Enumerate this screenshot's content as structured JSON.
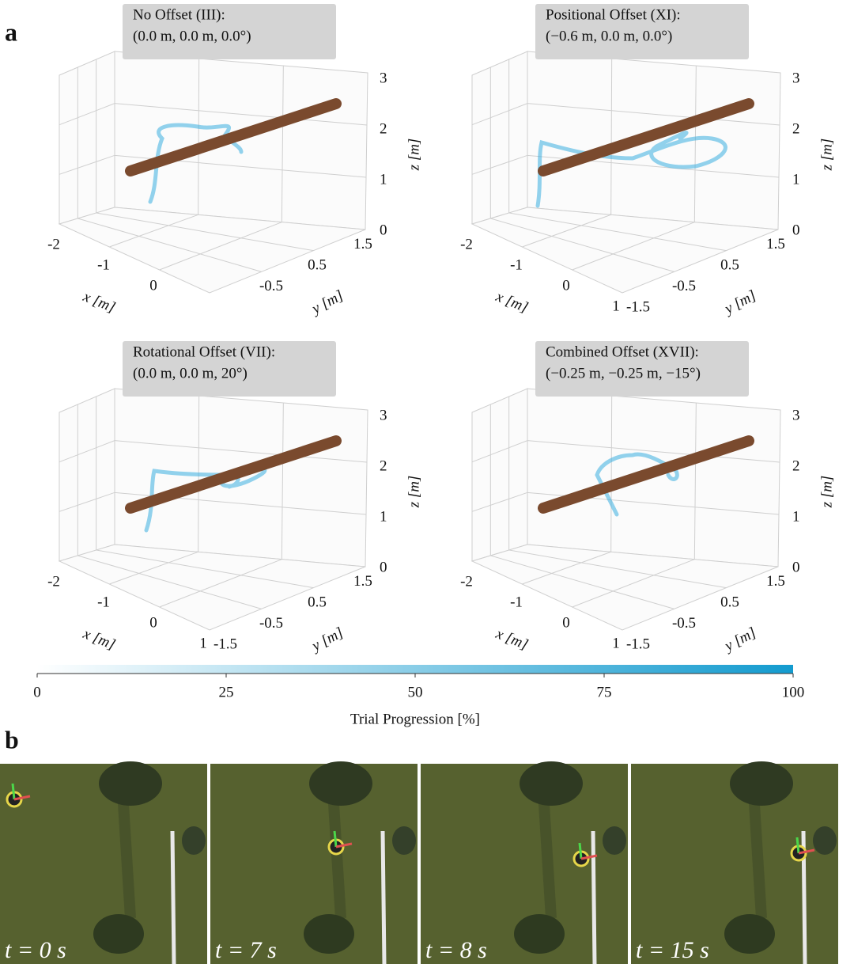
{
  "panel_a": {
    "label": "a",
    "plots": [
      {
        "title_line1": "No Offset (III):",
        "title_line2": "(0.0 m, 0.0 m, 0.0°)",
        "x_ticks": [
          "-2",
          "-1",
          "0"
        ],
        "y_ticks": [
          "-0.5",
          "0.5",
          "1.5"
        ],
        "z_ticks": [
          "0",
          "1",
          "2",
          "3"
        ],
        "x_label": "x [m]",
        "y_label": "y [m]",
        "z_label": "z [m]"
      },
      {
        "title_line1": "Positional Offset (XI):",
        "title_line2": "(−0.6 m, 0.0 m, 0.0°)",
        "x_ticks": [
          "-2",
          "-1",
          "0",
          "1"
        ],
        "y_ticks": [
          "-1.5",
          "-0.5",
          "0.5",
          "1.5"
        ],
        "z_ticks": [
          "0",
          "1",
          "2",
          "3"
        ],
        "x_label": "x [m]",
        "y_label": "y [m]",
        "z_label": "z [m]"
      },
      {
        "title_line1": "Rotational Offset (VII):",
        "title_line2": "(0.0 m, 0.0 m, 20°)",
        "x_ticks": [
          "-2",
          "-1",
          "0",
          "1"
        ],
        "y_ticks": [
          "-1.5",
          "-0.5",
          "0.5",
          "1.5"
        ],
        "z_ticks": [
          "0",
          "1",
          "2",
          "3"
        ],
        "x_label": "x [m]",
        "y_label": "y [m]",
        "z_label": "z [m]"
      },
      {
        "title_line1": "Combined Offset (XVII):",
        "title_line2": "(−0.25 m, −0.25 m, −15°)",
        "x_ticks": [
          "-2",
          "-1",
          "0",
          "1"
        ],
        "y_ticks": [
          "-1.5",
          "-0.5",
          "0.5",
          "1.5"
        ],
        "z_ticks": [
          "0",
          "1",
          "2",
          "3"
        ],
        "x_label": "x [m]",
        "y_label": "y [m]",
        "z_label": "z [m]"
      }
    ],
    "colorbar": {
      "ticks": [
        0,
        25,
        50,
        75,
        100
      ],
      "label": "Trial Progression [%]"
    }
  },
  "panel_b": {
    "label": "b",
    "frames": [
      {
        "time": "t = 0 s"
      },
      {
        "time": "t = 7 s"
      },
      {
        "time": "t = 8 s"
      },
      {
        "time": "t = 15 s"
      }
    ]
  }
}
